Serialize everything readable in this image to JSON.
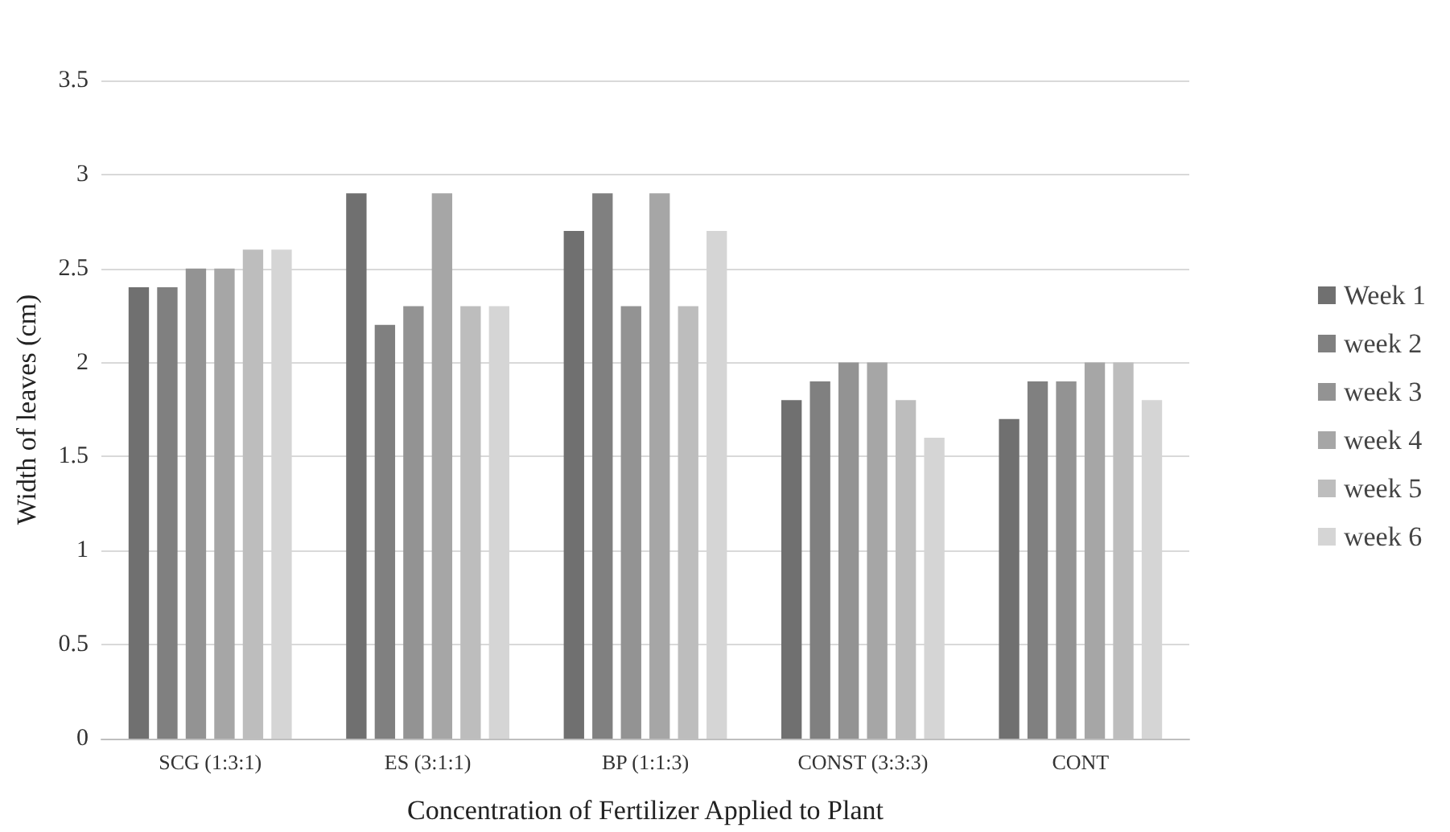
{
  "chart_data": {
    "type": "bar",
    "xlabel": "Concentration of Fertilizer Applied to Plant",
    "ylabel": "Width of leaves (cm)",
    "categories": [
      "SCG (1:3:1)",
      "ES (3:1:1)",
      "BP (1:1:3)",
      "CONST (3:3:3)",
      "CONT"
    ],
    "series": [
      {
        "name": "Week 1",
        "color": "#707070",
        "values": [
          2.4,
          2.9,
          2.7,
          1.8,
          1.7
        ]
      },
      {
        "name": "week 2",
        "color": "#808080",
        "values": [
          2.4,
          2.2,
          2.9,
          1.9,
          1.9
        ]
      },
      {
        "name": "week 3",
        "color": "#939393",
        "values": [
          2.5,
          2.3,
          2.3,
          2.0,
          1.9
        ]
      },
      {
        "name": "week 4",
        "color": "#a6a6a6",
        "values": [
          2.5,
          2.9,
          2.9,
          2.0,
          2.0
        ]
      },
      {
        "name": "week 5",
        "color": "#bdbdbd",
        "values": [
          2.6,
          2.3,
          2.3,
          1.8,
          2.0
        ]
      },
      {
        "name": "week 6",
        "color": "#d5d5d5",
        "values": [
          2.6,
          2.3,
          2.7,
          1.6,
          1.8
        ]
      }
    ],
    "ylim": [
      0,
      3.5
    ],
    "yticks": [
      0,
      0.5,
      1,
      1.5,
      2,
      2.5,
      3,
      3.5
    ],
    "grid": "y",
    "legend": "right"
  }
}
